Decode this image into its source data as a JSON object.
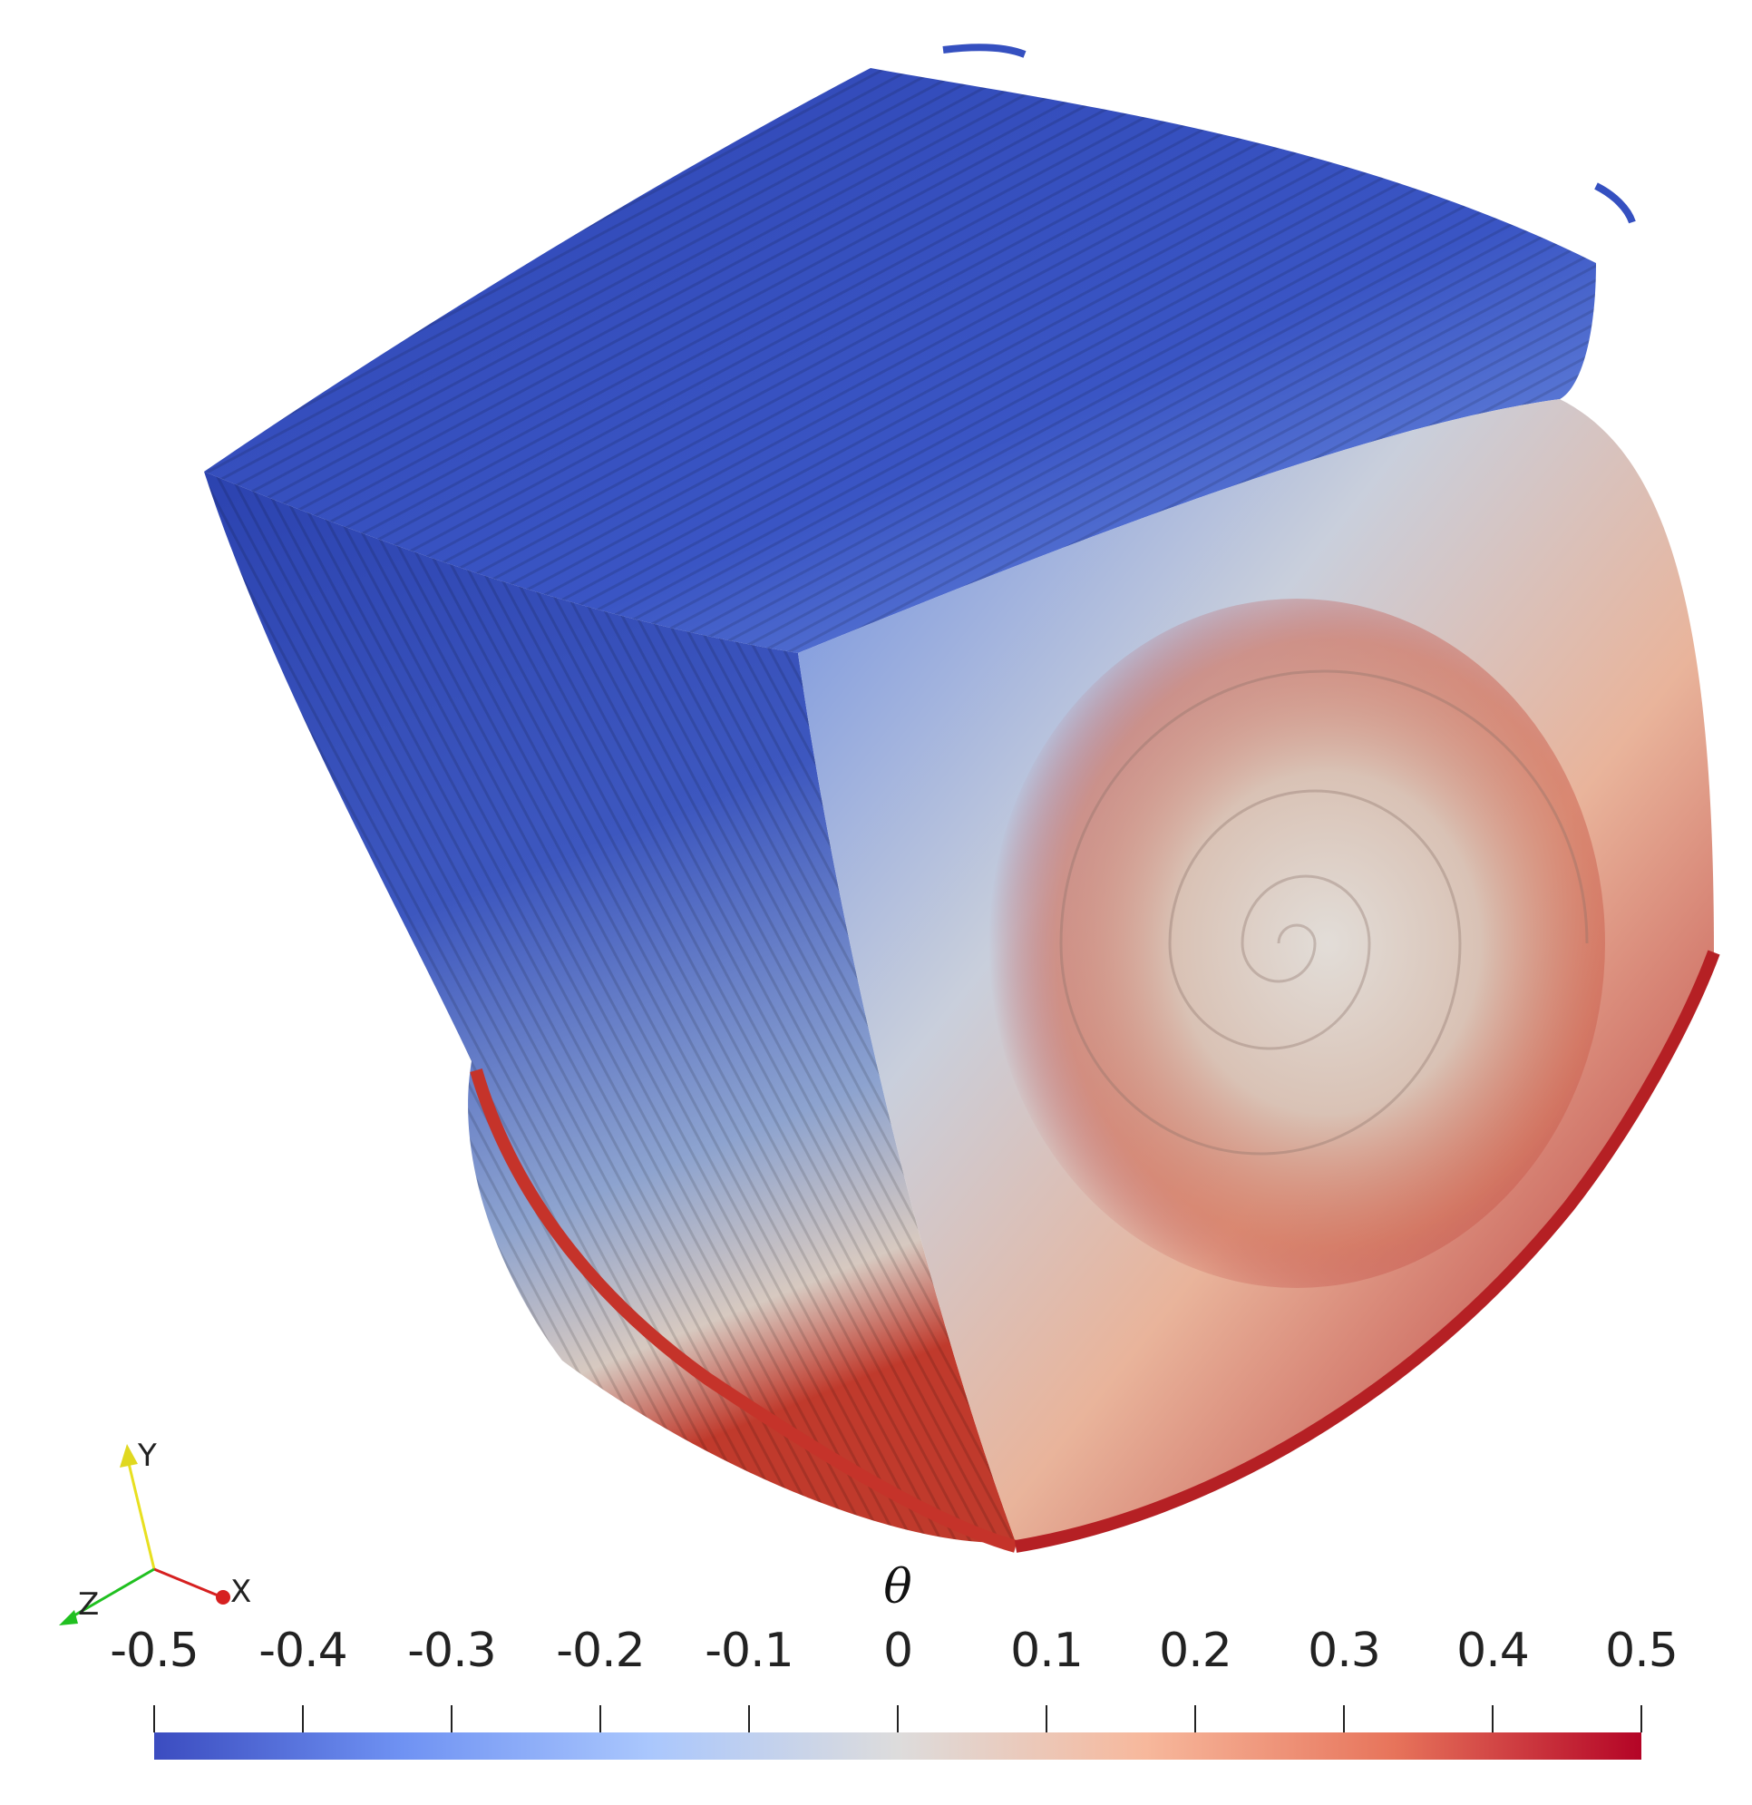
{
  "figure": {
    "description_colors": {
      "cold": "#3a4cc0",
      "neutral": "#dddcdc",
      "hot": "#b40426"
    }
  },
  "orientation_axes": {
    "x_label": "X",
    "y_label": "Y",
    "z_label": "Z",
    "x_color": "#d62020",
    "y_color": "#e8e020",
    "z_color": "#20c020"
  },
  "colorbar": {
    "title": "θ",
    "tick_labels": [
      "-0.5",
      "-0.4",
      "-0.3",
      "-0.2",
      "-0.1",
      "0",
      "0.1",
      "0.2",
      "0.3",
      "0.4",
      "0.5"
    ],
    "range": [
      -0.5,
      0.5
    ],
    "colormap_stops": [
      "#3b4cc0",
      "#6f92f3",
      "#aac7fd",
      "#dddcdc",
      "#f7b89c",
      "#e7745b",
      "#b40426"
    ]
  }
}
